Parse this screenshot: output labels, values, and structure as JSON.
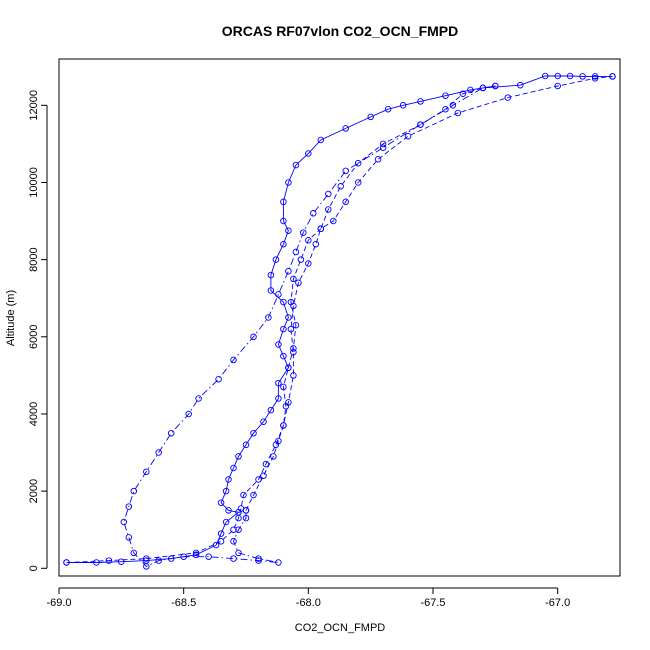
{
  "chart_data": {
    "type": "line",
    "title": "ORCAS RF07vlon CO2_OCN_FMPD",
    "xlabel": "CO2_OCN_FMPD",
    "ylabel": "Altitude (m)",
    "xlim": [
      -69.0,
      -66.75
    ],
    "ylim": [
      -200,
      13200
    ],
    "x_ticks": [
      -69.0,
      -68.5,
      -68.0,
      -67.5,
      -67.0
    ],
    "x_tick_labels": [
      "-69.0",
      "-68.5",
      "-68.0",
      "-67.5",
      "-67.0"
    ],
    "y_ticks": [
      0,
      2000,
      4000,
      6000,
      8000,
      10000,
      12000
    ],
    "y_tick_labels": [
      "0",
      "2000",
      "4000",
      "6000",
      "8000",
      "10000",
      "12000"
    ],
    "series_color": "#0000ff",
    "series": [
      {
        "segments": [
          {
            "style": "solid",
            "points": [
              [
                -66.78,
                12750
              ],
              [
                -66.85,
                12750
              ],
              [
                -66.9,
                12750
              ],
              [
                -66.95,
                12760
              ],
              [
                -67.0,
                12760
              ],
              [
                -67.05,
                12760
              ],
              [
                -67.15,
                12520
              ],
              [
                -67.3,
                12450
              ],
              [
                -67.35,
                12400
              ],
              [
                -67.45,
                12250
              ],
              [
                -67.55,
                12100
              ],
              [
                -67.62,
                12000
              ],
              [
                -67.68,
                11900
              ],
              [
                -67.75,
                11700
              ],
              [
                -67.85,
                11400
              ],
              [
                -67.95,
                11100
              ],
              [
                -68.0,
                10750
              ],
              [
                -68.05,
                10450
              ],
              [
                -68.08,
                10000
              ],
              [
                -68.1,
                9500
              ],
              [
                -68.1,
                9000
              ],
              [
                -68.08,
                8750
              ],
              [
                -68.1,
                8400
              ],
              [
                -68.13,
                8000
              ],
              [
                -68.15,
                7600
              ],
              [
                -68.15,
                7200
              ],
              [
                -68.1,
                6900
              ],
              [
                -68.08,
                6500
              ],
              [
                -68.1,
                6200
              ],
              [
                -68.12,
                5800
              ],
              [
                -68.1,
                5500
              ],
              [
                -68.08,
                5200
              ],
              [
                -68.12,
                4800
              ],
              [
                -68.12,
                4400
              ],
              [
                -68.15,
                4100
              ],
              [
                -68.18,
                3800
              ],
              [
                -68.22,
                3500
              ],
              [
                -68.25,
                3200
              ],
              [
                -68.28,
                2900
              ],
              [
                -68.3,
                2600
              ],
              [
                -68.32,
                2300
              ],
              [
                -68.33,
                2000
              ],
              [
                -68.35,
                1700
              ],
              [
                -68.32,
                1500
              ],
              [
                -68.28,
                1450
              ],
              [
                -68.33,
                1200
              ],
              [
                -68.35,
                900
              ],
              [
                -68.37,
                600
              ],
              [
                -68.45,
                350
              ],
              [
                -68.55,
                250
              ],
              [
                -68.65,
                200
              ],
              [
                -68.75,
                170
              ],
              [
                -68.85,
                150
              ],
              [
                -68.97,
                150
              ]
            ]
          },
          {
            "style": "dashed",
            "points": [
              [
                -68.97,
                150
              ],
              [
                -68.8,
                200
              ],
              [
                -68.65,
                250
              ],
              [
                -68.45,
                400
              ],
              [
                -68.35,
                700
              ],
              [
                -68.3,
                1000
              ],
              [
                -68.28,
                1300
              ],
              [
                -68.27,
                1550
              ],
              [
                -68.26,
                1900
              ],
              [
                -68.2,
                2300
              ],
              [
                -68.17,
                2700
              ],
              [
                -68.13,
                3200
              ],
              [
                -68.1,
                3700
              ],
              [
                -68.08,
                4300
              ],
              [
                -68.06,
                5000
              ],
              [
                -68.06,
                5600
              ],
              [
                -68.07,
                6200
              ],
              [
                -68.06,
                6800
              ],
              [
                -68.04,
                7400
              ],
              [
                -68.0,
                7900
              ],
              [
                -67.97,
                8400
              ],
              [
                -67.95,
                8800
              ],
              [
                -67.92,
                9300
              ],
              [
                -67.87,
                9900
              ],
              [
                -67.8,
                10500
              ],
              [
                -67.7,
                11000
              ],
              [
                -67.55,
                11500
              ],
              [
                -67.45,
                11900
              ],
              [
                -67.38,
                12300
              ],
              [
                -67.3,
                12450
              ],
              [
                -67.25,
                12500
              ]
            ]
          },
          {
            "style": "dashdot",
            "points": [
              [
                -67.25,
                12500
              ],
              [
                -67.3,
                12450
              ],
              [
                -67.42,
                12000
              ],
              [
                -67.55,
                11500
              ],
              [
                -67.7,
                10900
              ],
              [
                -67.85,
                10300
              ],
              [
                -67.92,
                9700
              ],
              [
                -67.98,
                9200
              ],
              [
                -68.02,
                8700
              ],
              [
                -68.05,
                8200
              ],
              [
                -68.08,
                7700
              ],
              [
                -68.12,
                7100
              ],
              [
                -68.16,
                6500
              ],
              [
                -68.22,
                6000
              ],
              [
                -68.3,
                5400
              ],
              [
                -68.36,
                4900
              ],
              [
                -68.44,
                4400
              ],
              [
                -68.48,
                4000
              ],
              [
                -68.55,
                3500
              ],
              [
                -68.6,
                3000
              ],
              [
                -68.65,
                2500
              ],
              [
                -68.7,
                2000
              ],
              [
                -68.72,
                1600
              ],
              [
                -68.74,
                1200
              ],
              [
                -68.72,
                800
              ],
              [
                -68.7,
                400
              ],
              [
                -68.65,
                50
              ],
              [
                -68.6,
                200
              ],
              [
                -68.5,
                300
              ],
              [
                -68.4,
                300
              ],
              [
                -68.3,
                250
              ],
              [
                -68.2,
                200
              ],
              [
                -68.12,
                150
              ],
              [
                -68.2,
                250
              ],
              [
                -68.28,
                400
              ],
              [
                -68.3,
                700
              ],
              [
                -68.28,
                1000
              ],
              [
                -68.25,
                1300
              ],
              [
                -68.25,
                1500
              ]
            ]
          },
          {
            "style": "dashed",
            "points": [
              [
                -68.25,
                1500
              ],
              [
                -68.22,
                1900
              ],
              [
                -68.18,
                2400
              ],
              [
                -68.14,
                2900
              ],
              [
                -68.12,
                3300
              ],
              [
                -68.1,
                3700
              ],
              [
                -68.09,
                4200
              ],
              [
                -68.1,
                4700
              ],
              [
                -68.08,
                5200
              ],
              [
                -68.06,
                5700
              ],
              [
                -68.05,
                6300
              ],
              [
                -68.07,
                6900
              ],
              [
                -68.06,
                7500
              ],
              [
                -68.03,
                8000
              ],
              [
                -68.0,
                8500
              ],
              [
                -67.95,
                8800
              ],
              [
                -67.9,
                9000
              ],
              [
                -67.85,
                9500
              ],
              [
                -67.8,
                10000
              ],
              [
                -67.72,
                10600
              ],
              [
                -67.6,
                11200
              ],
              [
                -67.4,
                11800
              ],
              [
                -67.2,
                12200
              ],
              [
                -67.0,
                12500
              ],
              [
                -66.85,
                12700
              ],
              [
                -66.78,
                12750
              ]
            ]
          }
        ]
      }
    ]
  }
}
